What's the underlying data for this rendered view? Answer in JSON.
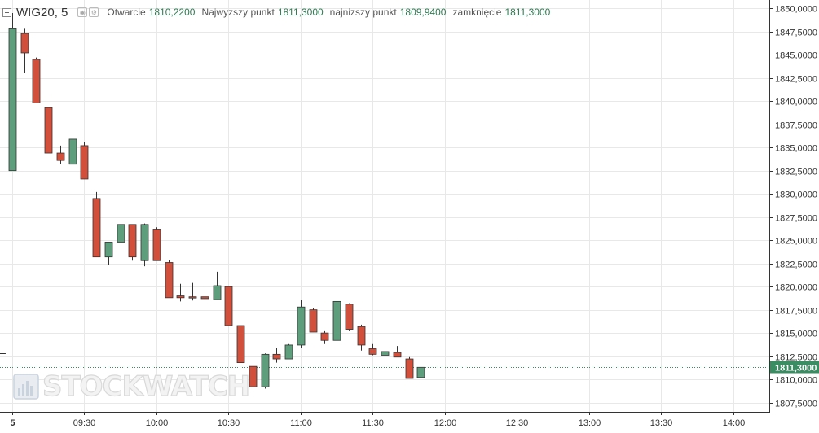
{
  "legend": {
    "symbol": "WIG20",
    "interval": "5",
    "open_label": "Otwarcie",
    "open_value": "1810,2200",
    "high_label": "Najwyzszy punkt",
    "high_value": "1811,3000",
    "low_label": "najnizszy punkt",
    "low_value": "1809,9400",
    "close_label": "zamknięcie",
    "close_value": "1811,3000"
  },
  "watermark": "STOCKWATCH",
  "colors": {
    "up": "#5d9e7c",
    "down": "#d24f3b",
    "last_price": "#3a8c62",
    "grid": "#e8e8e8"
  },
  "chart_data": {
    "type": "candlestick",
    "y_range": [
      1806.5,
      1850.9
    ],
    "y_ticks": [
      1807.5,
      1810,
      1812.5,
      1815,
      1817.5,
      1820,
      1822.5,
      1825,
      1827.5,
      1830,
      1832.5,
      1835,
      1837.5,
      1840,
      1842.5,
      1845,
      1847.5,
      1850
    ],
    "y_tick_labels": [
      "1807,5000",
      "1810,0000",
      "1812,5000",
      "1815,0000",
      "1817,5000",
      "1820,0000",
      "1822,5000",
      "1825,0000",
      "1827,5000",
      "1830,0000",
      "1832,5000",
      "1835,0000",
      "1837,5000",
      "1840,0000",
      "1842,5000",
      "1845,0000",
      "1847,5000",
      "1850,0000"
    ],
    "x_range_minutes": [
      535,
      855
    ],
    "x_ticks": [
      {
        "t": 540,
        "label": "5"
      },
      {
        "t": 570,
        "label": "09:30"
      },
      {
        "t": 600,
        "label": "10:00"
      },
      {
        "t": 630,
        "label": "10:30"
      },
      {
        "t": 660,
        "label": "11:00"
      },
      {
        "t": 690,
        "label": "11:30"
      },
      {
        "t": 720,
        "label": "12:00"
      },
      {
        "t": 750,
        "label": "12:30"
      },
      {
        "t": 780,
        "label": "13:00"
      },
      {
        "t": 810,
        "label": "13:30"
      },
      {
        "t": 840,
        "label": "14:00"
      }
    ],
    "last_price": 1811.3,
    "last_price_label": "1811,3000",
    "candles": [
      {
        "t": 540,
        "o": 1832.5,
        "h": 1849.5,
        "l": 1832.5,
        "c": 1847.8
      },
      {
        "t": 545,
        "o": 1847.3,
        "h": 1847.8,
        "l": 1843.0,
        "c": 1845.2
      },
      {
        "t": 550,
        "o": 1844.5,
        "h": 1844.7,
        "l": 1839.8,
        "c": 1839.8
      },
      {
        "t": 555,
        "o": 1839.3,
        "h": 1839.3,
        "l": 1834.4,
        "c": 1834.4
      },
      {
        "t": 560,
        "o": 1834.4,
        "h": 1835.2,
        "l": 1833.2,
        "c": 1833.6
      },
      {
        "t": 565,
        "o": 1833.2,
        "h": 1836.0,
        "l": 1831.6,
        "c": 1835.9
      },
      {
        "t": 570,
        "o": 1835.2,
        "h": 1835.6,
        "l": 1831.6,
        "c": 1831.6
      },
      {
        "t": 575,
        "o": 1829.5,
        "h": 1830.2,
        "l": 1823.2,
        "c": 1823.2
      },
      {
        "t": 580,
        "o": 1823.2,
        "h": 1824.8,
        "l": 1822.3,
        "c": 1824.8
      },
      {
        "t": 585,
        "o": 1824.8,
        "h": 1826.8,
        "l": 1824.8,
        "c": 1826.7
      },
      {
        "t": 590,
        "o": 1826.7,
        "h": 1826.7,
        "l": 1822.8,
        "c": 1823.2
      },
      {
        "t": 595,
        "o": 1822.8,
        "h": 1826.8,
        "l": 1822.2,
        "c": 1826.7
      },
      {
        "t": 600,
        "o": 1826.2,
        "h": 1826.4,
        "l": 1822.8,
        "c": 1822.8
      },
      {
        "t": 605,
        "o": 1822.6,
        "h": 1822.9,
        "l": 1818.8,
        "c": 1818.8
      },
      {
        "t": 610,
        "o": 1819.0,
        "h": 1820.3,
        "l": 1818.4,
        "c": 1818.8
      },
      {
        "t": 615,
        "o": 1818.9,
        "h": 1820.4,
        "l": 1818.5,
        "c": 1818.8
      },
      {
        "t": 620,
        "o": 1818.9,
        "h": 1819.6,
        "l": 1818.6,
        "c": 1818.7
      },
      {
        "t": 625,
        "o": 1818.6,
        "h": 1821.6,
        "l": 1818.6,
        "c": 1820.1
      },
      {
        "t": 630,
        "o": 1820.0,
        "h": 1820.1,
        "l": 1815.8,
        "c": 1815.8
      },
      {
        "t": 635,
        "o": 1815.8,
        "h": 1815.8,
        "l": 1811.8,
        "c": 1811.8
      },
      {
        "t": 640,
        "o": 1811.4,
        "h": 1811.4,
        "l": 1808.7,
        "c": 1809.2
      },
      {
        "t": 645,
        "o": 1809.2,
        "h": 1812.8,
        "l": 1809.0,
        "c": 1812.7
      },
      {
        "t": 650,
        "o": 1812.7,
        "h": 1813.4,
        "l": 1811.8,
        "c": 1812.2
      },
      {
        "t": 655,
        "o": 1812.2,
        "h": 1813.8,
        "l": 1812.2,
        "c": 1813.7
      },
      {
        "t": 660,
        "o": 1813.7,
        "h": 1818.6,
        "l": 1813.4,
        "c": 1817.8
      },
      {
        "t": 665,
        "o": 1817.5,
        "h": 1817.7,
        "l": 1815.1,
        "c": 1815.1
      },
      {
        "t": 670,
        "o": 1815.0,
        "h": 1815.2,
        "l": 1813.8,
        "c": 1814.2
      },
      {
        "t": 675,
        "o": 1814.2,
        "h": 1819.1,
        "l": 1814.2,
        "c": 1818.4
      },
      {
        "t": 680,
        "o": 1818.1,
        "h": 1818.2,
        "l": 1815.2,
        "c": 1815.4
      },
      {
        "t": 685,
        "o": 1815.7,
        "h": 1815.9,
        "l": 1813.1,
        "c": 1813.7
      },
      {
        "t": 690,
        "o": 1813.3,
        "h": 1813.8,
        "l": 1812.6,
        "c": 1812.7
      },
      {
        "t": 695,
        "o": 1812.6,
        "h": 1814.1,
        "l": 1812.4,
        "c": 1813.0
      },
      {
        "t": 700,
        "o": 1812.9,
        "h": 1813.6,
        "l": 1812.4,
        "c": 1812.4
      },
      {
        "t": 705,
        "o": 1812.2,
        "h": 1812.4,
        "l": 1810.1,
        "c": 1810.1
      },
      {
        "t": 710,
        "o": 1810.2,
        "h": 1811.3,
        "l": 1809.9,
        "c": 1811.3
      }
    ],
    "stray_mark": {
      "t": 536,
      "v": 1812.8
    }
  }
}
